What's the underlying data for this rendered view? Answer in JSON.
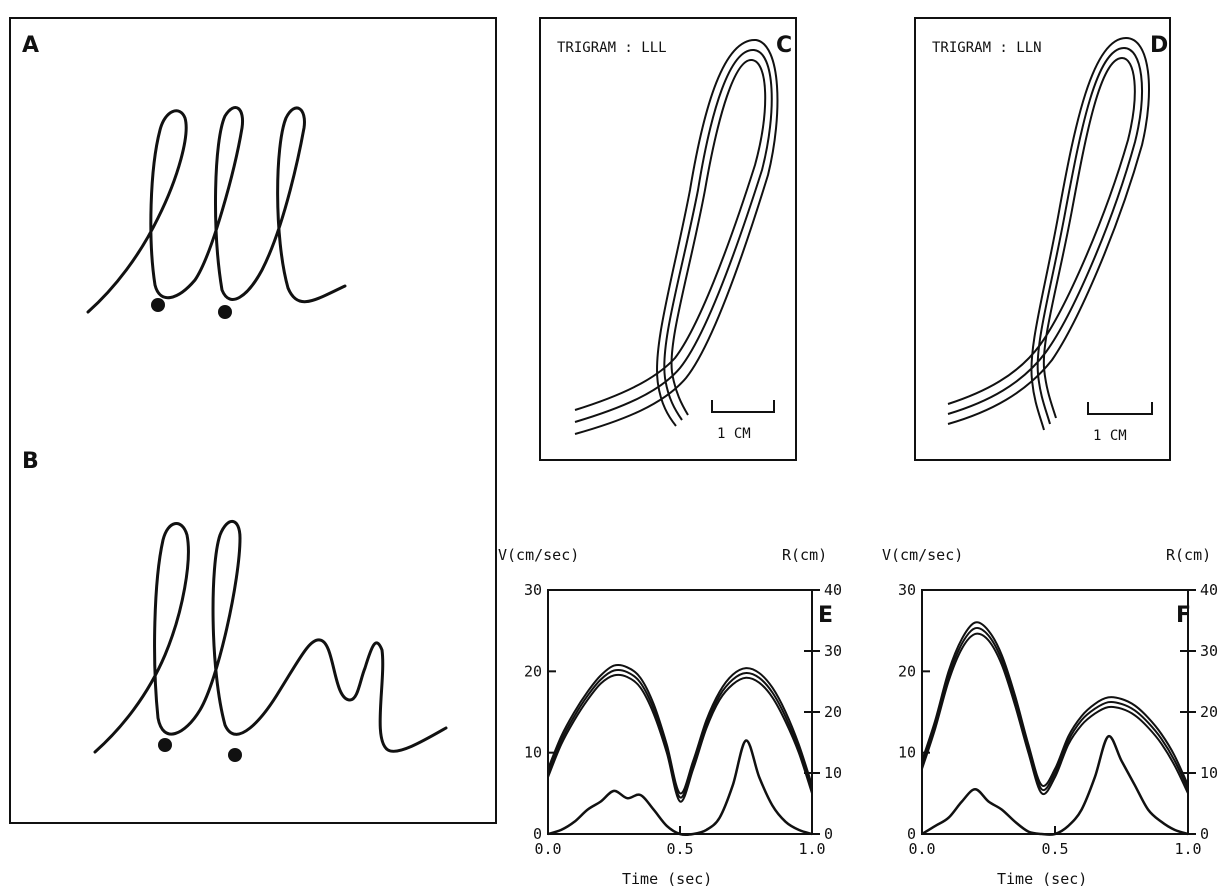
{
  "panels": {
    "a": {
      "letter": "A"
    },
    "b": {
      "letter": "B"
    },
    "c": {
      "letter": "C",
      "title": "TRIGRAM : LLL",
      "scale_label": "1 CM"
    },
    "d": {
      "letter": "D",
      "title": "TRIGRAM : LLN",
      "scale_label": "1 CM"
    }
  },
  "chart_data": [
    {
      "panel": "E",
      "type": "line",
      "ylabel_left": "V(cm/sec)",
      "ylabel_right": "R(cm)",
      "xlabel": "Time (sec)",
      "xlim": [
        0,
        1
      ],
      "ylim": [
        0,
        30
      ],
      "ylim_right": [
        0,
        40
      ],
      "xticks": [
        "0.0",
        "0.5",
        "1.0"
      ],
      "yticks_left": [
        "0",
        "10",
        "20",
        "30"
      ],
      "yticks_right": [
        "0",
        "10",
        "20",
        "30",
        "40"
      ],
      "series": [
        {
          "x": [
            0.0,
            0.05,
            0.1,
            0.15,
            0.2,
            0.25,
            0.3,
            0.35,
            0.4,
            0.45,
            0.5,
            0.55,
            0.6,
            0.65,
            0.7,
            0.75,
            0.8,
            0.85,
            0.9,
            0.95,
            1.0
          ],
          "y": [
            8,
            12,
            15,
            17.5,
            19.5,
            20.7,
            20.5,
            19.2,
            16,
            11,
            5,
            9,
            14,
            17.5,
            19.6,
            20.4,
            19.8,
            18,
            15,
            11,
            6
          ]
        },
        {
          "x": [
            0.0,
            0.05,
            0.1,
            0.15,
            0.2,
            0.25,
            0.3,
            0.35,
            0.4,
            0.45,
            0.5,
            0.55,
            0.6,
            0.65,
            0.7,
            0.75,
            0.8,
            0.85,
            0.9,
            0.95,
            1.0
          ],
          "y": [
            7.5,
            11.5,
            14.5,
            17,
            19,
            20.1,
            19.9,
            18.6,
            15.4,
            10.5,
            4.5,
            8.5,
            13.5,
            17,
            19,
            19.8,
            19.2,
            17.4,
            14.4,
            10.5,
            5.5
          ]
        },
        {
          "x": [
            0.0,
            0.05,
            0.1,
            0.15,
            0.2,
            0.25,
            0.3,
            0.35,
            0.4,
            0.45,
            0.5,
            0.55,
            0.6,
            0.65,
            0.7,
            0.75,
            0.8,
            0.85,
            0.9,
            0.95,
            1.0
          ],
          "y": [
            7,
            11,
            14,
            16.5,
            18.5,
            19.5,
            19.3,
            18,
            14.8,
            10,
            4,
            8,
            13,
            16.5,
            18.4,
            19.2,
            18.6,
            16.8,
            13.8,
            10,
            5
          ]
        },
        {
          "x": [
            0.0,
            0.05,
            0.1,
            0.15,
            0.2,
            0.25,
            0.3,
            0.35,
            0.4,
            0.45,
            0.5,
            0.55,
            0.6,
            0.65,
            0.7,
            0.75,
            0.8,
            0.85,
            0.9,
            0.95,
            1.0
          ],
          "y": [
            0,
            0.5,
            1.5,
            3,
            4,
            5.3,
            4.4,
            4.8,
            3,
            1,
            0,
            0,
            0.5,
            2,
            6,
            11.5,
            7,
            3.5,
            1.5,
            0.5,
            0
          ]
        }
      ]
    },
    {
      "panel": "F",
      "type": "line",
      "ylabel_left": "V(cm/sec)",
      "ylabel_right": "R(cm)",
      "xlabel": "Time (sec)",
      "xlim": [
        0,
        1
      ],
      "ylim": [
        0,
        30
      ],
      "ylim_right": [
        0,
        40
      ],
      "xticks": [
        "0.0",
        "0.5",
        "1.0"
      ],
      "yticks_left": [
        "0",
        "10",
        "20",
        "30"
      ],
      "yticks_right": [
        "0",
        "10",
        "20",
        "30",
        "40"
      ],
      "series": [
        {
          "x": [
            0.0,
            0.05,
            0.1,
            0.15,
            0.2,
            0.25,
            0.3,
            0.35,
            0.4,
            0.45,
            0.5,
            0.55,
            0.6,
            0.65,
            0.7,
            0.75,
            0.8,
            0.85,
            0.9,
            0.95,
            1.0
          ],
          "y": [
            9,
            14,
            20,
            24,
            26,
            25,
            22,
            17,
            11,
            6,
            8,
            12,
            14.5,
            16,
            16.8,
            16.6,
            15.8,
            14.3,
            12.3,
            9.6,
            6
          ]
        },
        {
          "x": [
            0.0,
            0.05,
            0.1,
            0.15,
            0.2,
            0.25,
            0.3,
            0.35,
            0.4,
            0.45,
            0.5,
            0.55,
            0.6,
            0.65,
            0.7,
            0.75,
            0.8,
            0.85,
            0.9,
            0.95,
            1.0
          ],
          "y": [
            8.5,
            13.5,
            19.4,
            23.4,
            25.3,
            24.4,
            21.4,
            16.4,
            10.5,
            5.5,
            7.5,
            11.5,
            14,
            15.4,
            16.2,
            16,
            15.2,
            13.7,
            11.7,
            9,
            5.5
          ]
        },
        {
          "x": [
            0.0,
            0.05,
            0.1,
            0.15,
            0.2,
            0.25,
            0.3,
            0.35,
            0.4,
            0.45,
            0.5,
            0.55,
            0.6,
            0.65,
            0.7,
            0.75,
            0.8,
            0.85,
            0.9,
            0.95,
            1.0
          ],
          "y": [
            8,
            13,
            18.8,
            22.8,
            24.6,
            23.8,
            20.8,
            15.8,
            10,
            5,
            7,
            11,
            13.4,
            14.8,
            15.6,
            15.4,
            14.6,
            13.1,
            11.1,
            8.4,
            5
          ]
        },
        {
          "x": [
            0.0,
            0.05,
            0.1,
            0.15,
            0.2,
            0.25,
            0.3,
            0.35,
            0.4,
            0.45,
            0.5,
            0.55,
            0.6,
            0.65,
            0.7,
            0.75,
            0.8,
            0.85,
            0.9,
            0.95,
            1.0
          ],
          "y": [
            0,
            1,
            2,
            4,
            5.5,
            4,
            3,
            1.5,
            0.3,
            0,
            0,
            1,
            3,
            7,
            12,
            9,
            6,
            3,
            1.5,
            0.5,
            0
          ]
        }
      ]
    }
  ]
}
